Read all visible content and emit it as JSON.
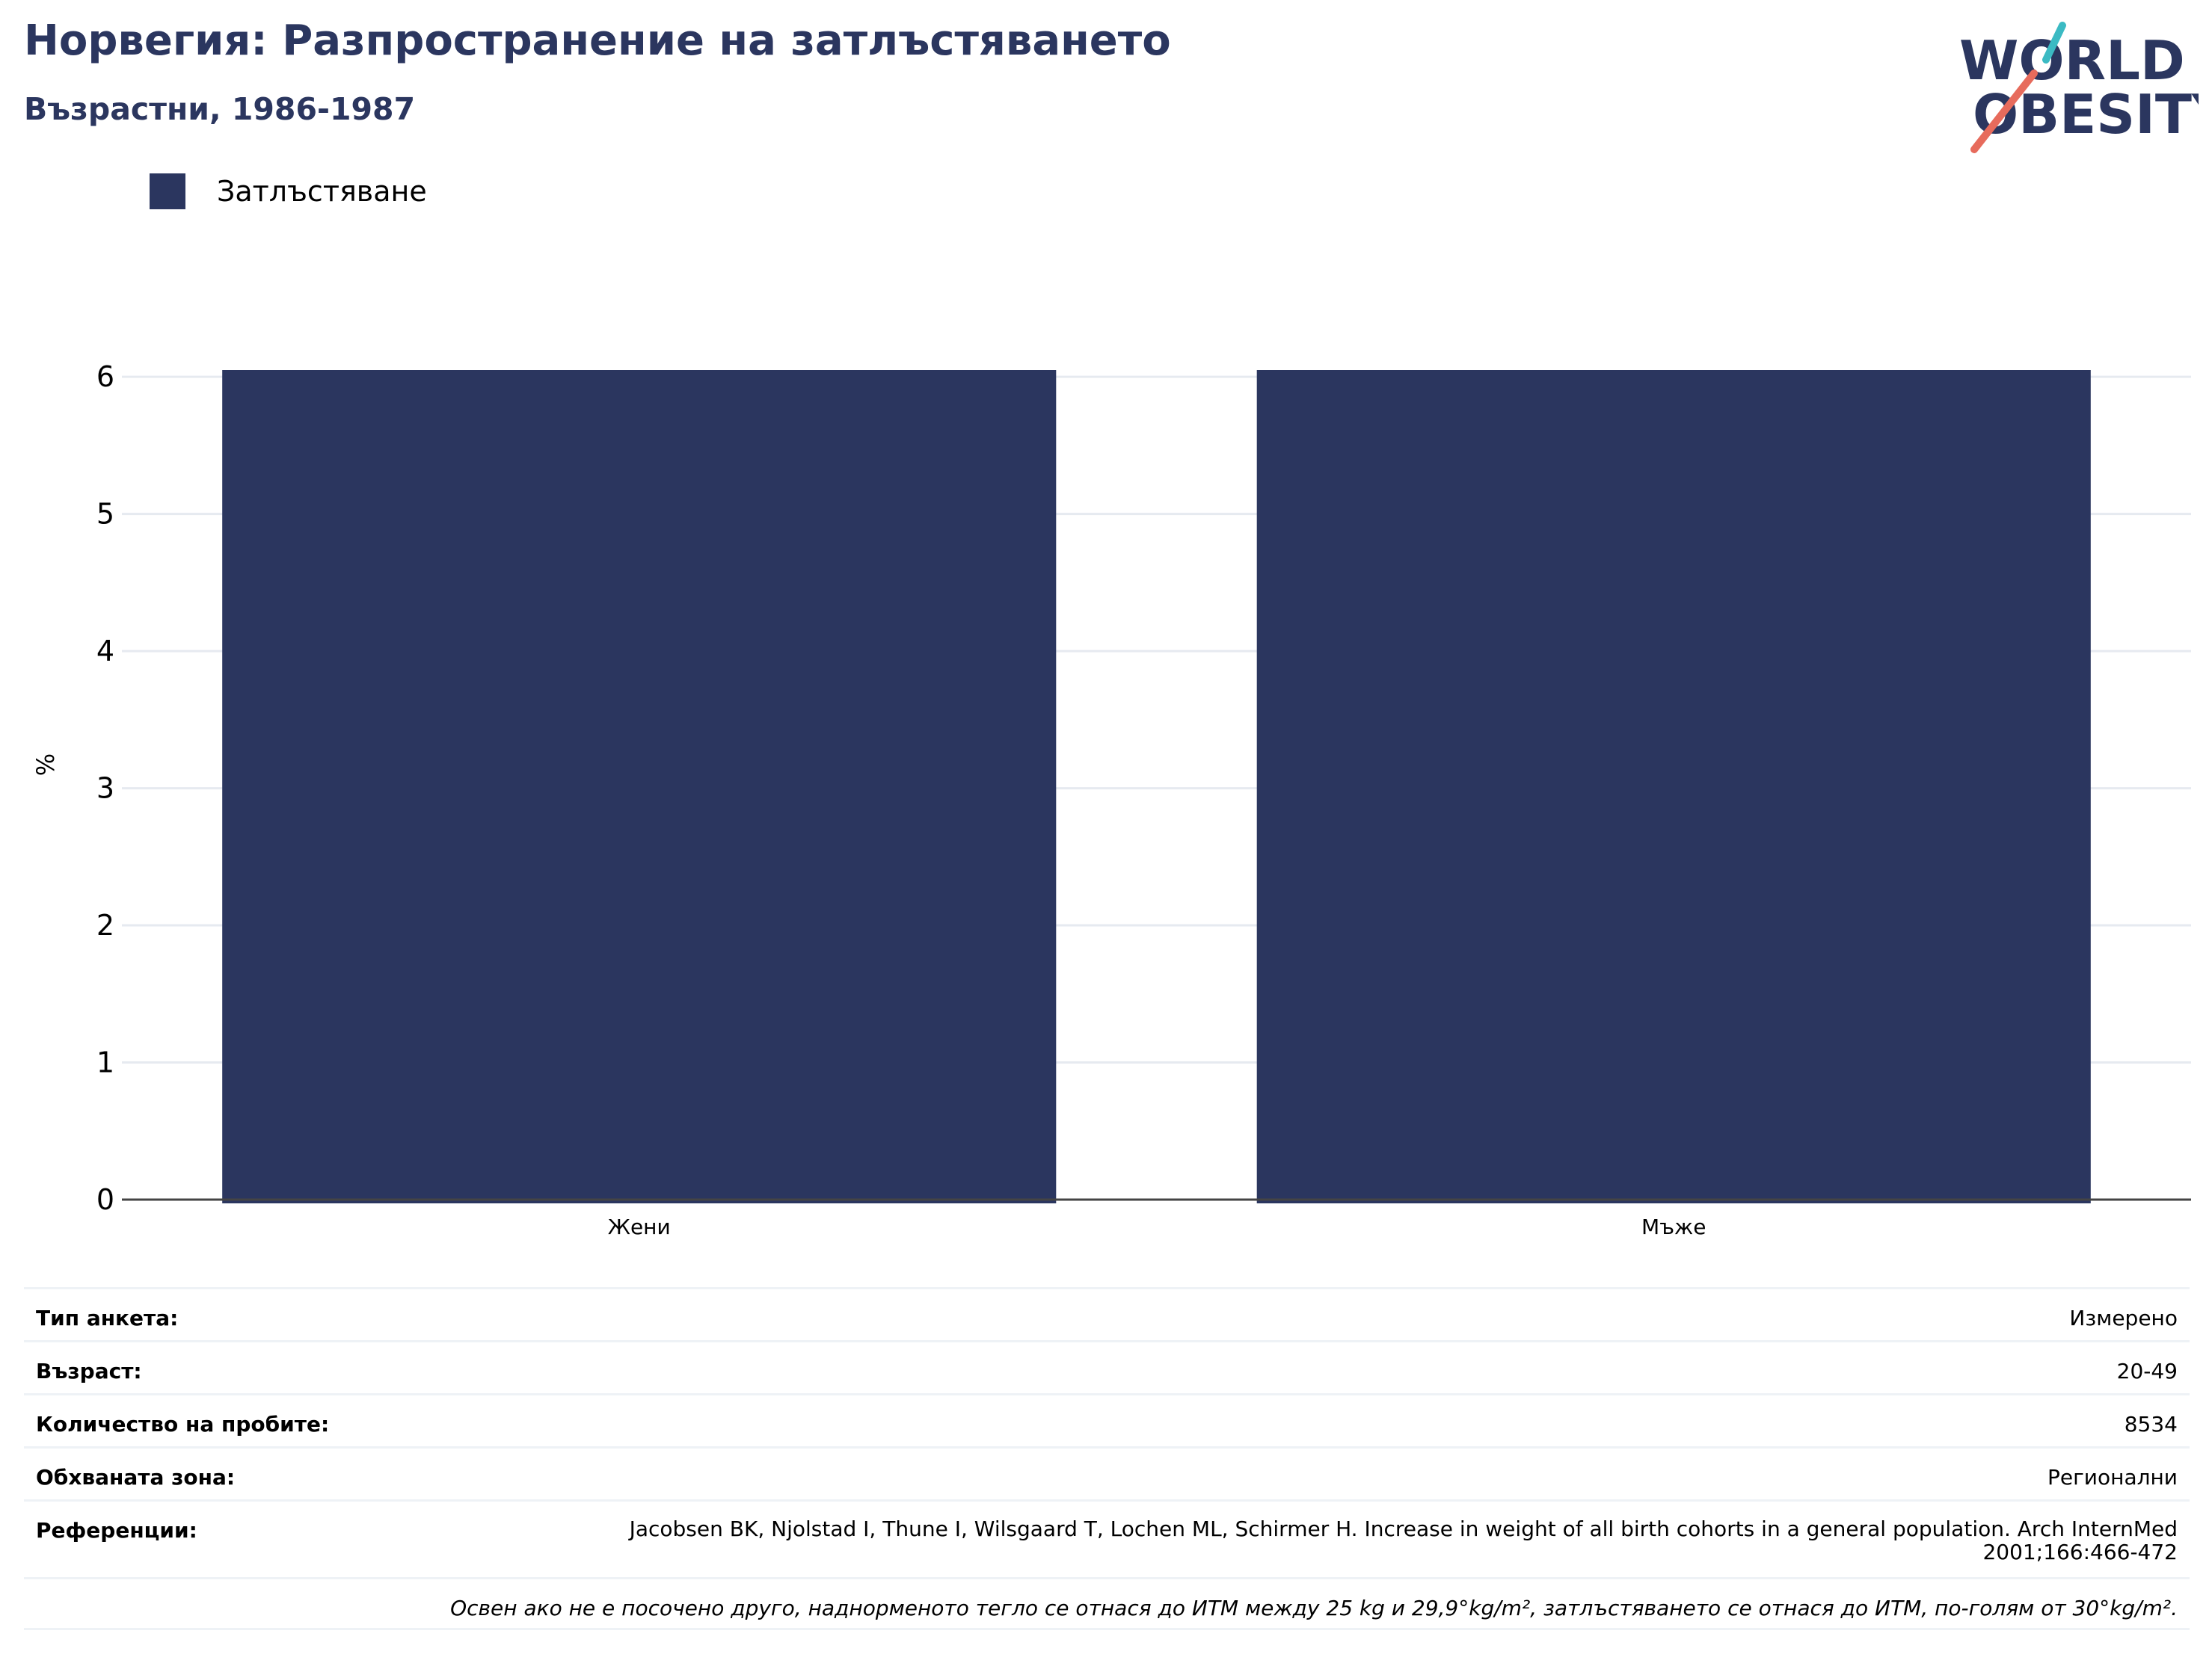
{
  "header": {
    "title": "Норвегия: Разпространение на затлъстяването",
    "subtitle": "Възрастни, 1986-1987"
  },
  "logo": {
    "line1": "WORLD",
    "line2": "OBESITY"
  },
  "colors": {
    "bar": "#2b365f",
    "title": "#2b365f",
    "grid": "#e6eaf0",
    "logo_teal": "#3bbac3",
    "logo_red": "#e76b5c"
  },
  "chart_data": {
    "type": "bar",
    "categories": [
      "Жени",
      "Мъже"
    ],
    "series": [
      {
        "name": "Затлъстяване",
        "values": [
          6.05,
          6.05
        ]
      }
    ],
    "ylabel": "%",
    "xlabel": "",
    "ylim": [
      0,
      6.05
    ],
    "yticks": [
      0,
      1,
      2,
      3,
      4,
      5,
      6
    ],
    "grid": true,
    "legend": "top-left"
  },
  "info": {
    "rows": [
      {
        "key": "Тип анкета:",
        "value": "Измерено"
      },
      {
        "key": "Възраст:",
        "value": "20-49"
      },
      {
        "key": "Количество на пробите:",
        "value": "8534"
      },
      {
        "key": "Обхваната зона:",
        "value": "Регионални"
      },
      {
        "key": "Референции:",
        "value": "Jacobsen BK, Njolstad I, Thune I, Wilsgaard T, Lochen ML, Schirmer H. Increase in weight of all birth cohorts in a general population. Arch InternMed 2001;166:466-472"
      }
    ],
    "note": "Освен ако не е посочено друго, наднорменото тегло се отнася до ИТМ между 25 kg и 29,9°kg/m², затлъстяването се отнася до ИТМ, по-голям от 30°kg/m²."
  }
}
